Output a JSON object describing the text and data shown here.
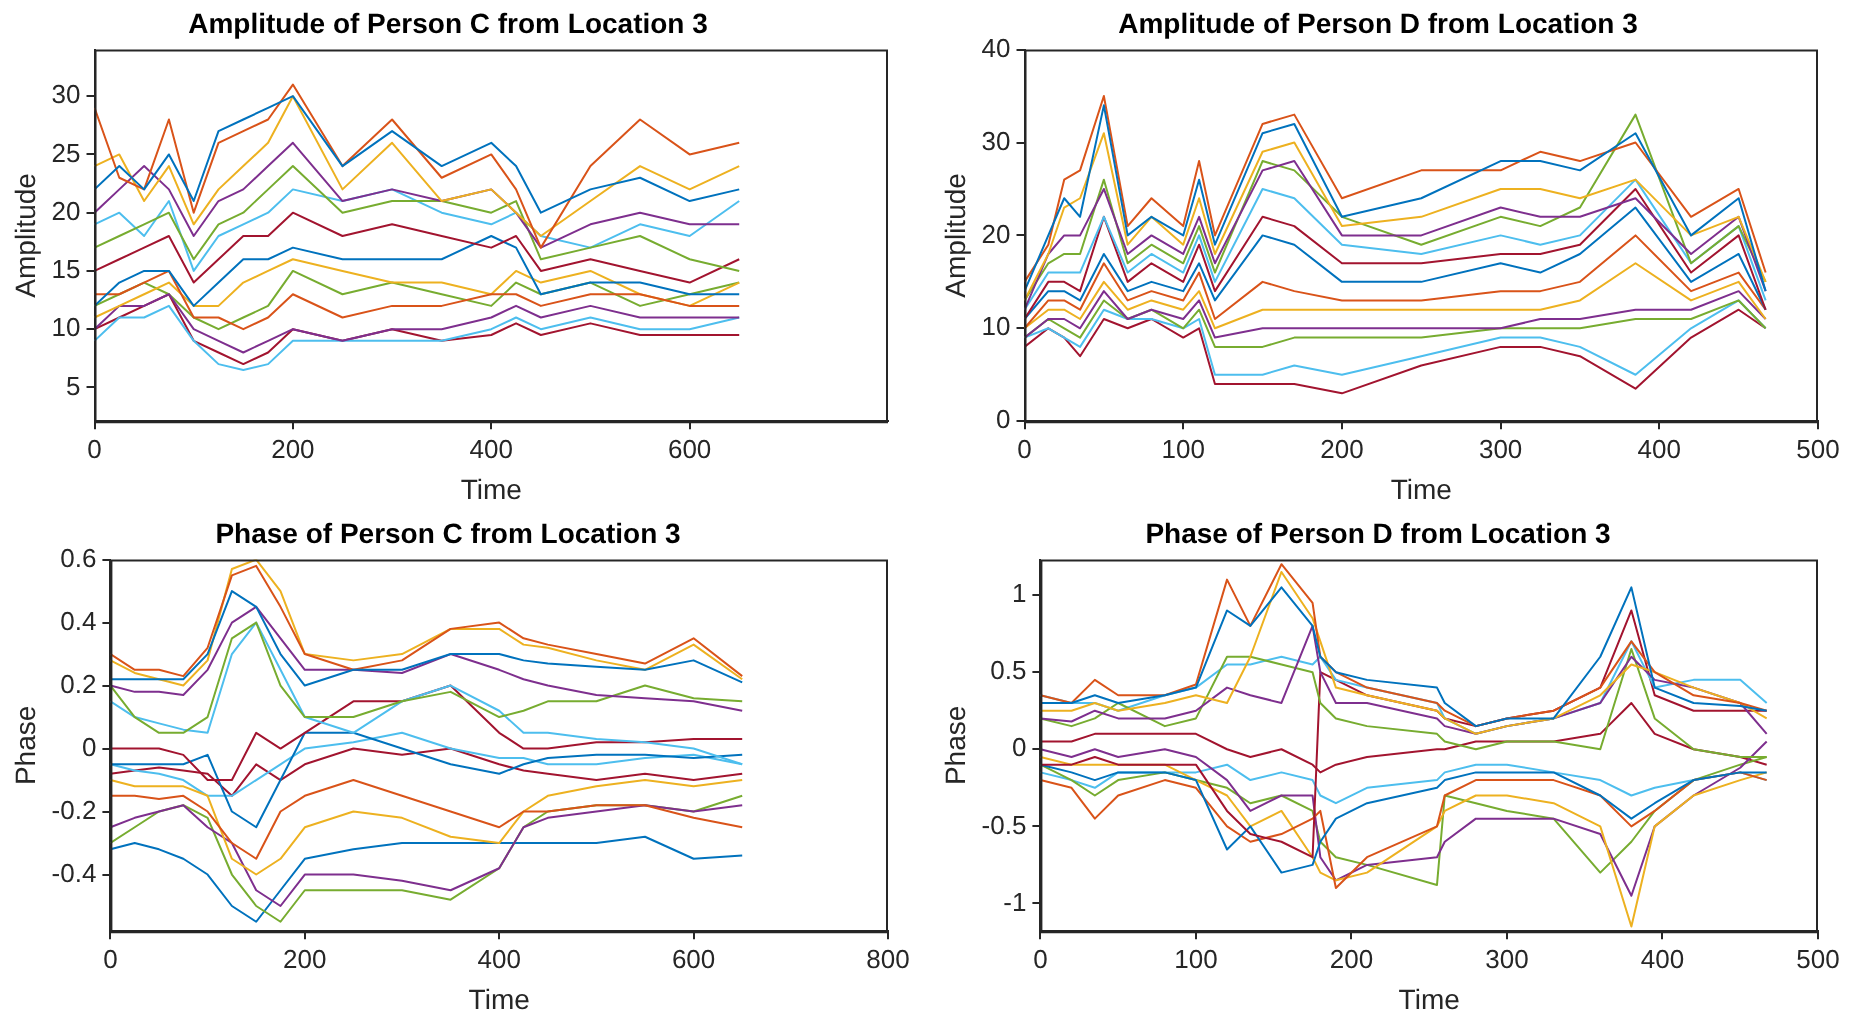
{
  "chart_data": [
    {
      "type": "line",
      "title": "Amplitude of Person C from Location 3",
      "xlabel": "Time",
      "ylabel": "Amplitude",
      "xlim": [
        0,
        800
      ],
      "xticks": [
        0,
        200,
        400,
        600
      ],
      "ylim": [
        2.1,
        34
      ],
      "yticks": [
        5,
        10,
        15,
        20,
        25,
        30
      ],
      "x": [
        0,
        25,
        50,
        75,
        100,
        125,
        150,
        175,
        200,
        250,
        300,
        350,
        400,
        425,
        450,
        500,
        550,
        600,
        650
      ],
      "series": [
        {
          "color": "#0072bd",
          "values": [
            22,
            24,
            22,
            25,
            21,
            27,
            28,
            29,
            30,
            24,
            27,
            24,
            26,
            24,
            20,
            22,
            23,
            21,
            22
          ]
        },
        {
          "color": "#d95319",
          "values": [
            29,
            23,
            22,
            28,
            20,
            26,
            27,
            28,
            31,
            24,
            28,
            23,
            25,
            22,
            17,
            24,
            28,
            25,
            26
          ]
        },
        {
          "color": "#edb120",
          "values": [
            24,
            25,
            21,
            24,
            19,
            22,
            24,
            26,
            30,
            22,
            26,
            21,
            22,
            20,
            18,
            21,
            24,
            22,
            24
          ]
        },
        {
          "color": "#7e2f8e",
          "values": [
            20,
            22,
            24,
            22,
            18,
            21,
            22,
            24,
            26,
            21,
            22,
            21,
            22,
            20,
            17,
            19,
            20,
            19,
            19
          ]
        },
        {
          "color": "#77ac30",
          "values": [
            17,
            18,
            19,
            20,
            16,
            19,
            20,
            22,
            24,
            20,
            21,
            21,
            20,
            21,
            16,
            17,
            18,
            16,
            15
          ]
        },
        {
          "color": "#4dbeee",
          "values": [
            19,
            20,
            18,
            21,
            15,
            18,
            19,
            20,
            22,
            21,
            22,
            20,
            19,
            20,
            18,
            17,
            19,
            18,
            21
          ]
        },
        {
          "color": "#a2142f",
          "values": [
            15,
            16,
            17,
            18,
            14,
            16,
            18,
            18,
            20,
            18,
            19,
            18,
            17,
            18,
            15,
            16,
            15,
            14,
            16
          ]
        },
        {
          "color": "#0072bd",
          "values": [
            12,
            14,
            15,
            15,
            12,
            14,
            16,
            16,
            17,
            16,
            16,
            16,
            18,
            17,
            13,
            14,
            14,
            13,
            13
          ]
        },
        {
          "color": "#d95319",
          "values": [
            13,
            13,
            14,
            15,
            11,
            11,
            10,
            11,
            13,
            11,
            12,
            12,
            13,
            13,
            12,
            13,
            13,
            12,
            12
          ]
        },
        {
          "color": "#edb120",
          "values": [
            11,
            12,
            13,
            14,
            12,
            12,
            14,
            15,
            16,
            15,
            14,
            14,
            13,
            15,
            14,
            15,
            13,
            12,
            14
          ]
        },
        {
          "color": "#7e2f8e",
          "values": [
            10,
            12,
            12,
            13,
            10,
            9,
            8,
            9,
            10,
            9,
            10,
            10,
            11,
            12,
            11,
            12,
            11,
            11,
            11
          ]
        },
        {
          "color": "#77ac30",
          "values": [
            12,
            13,
            14,
            13,
            11,
            10,
            11,
            12,
            15,
            13,
            14,
            13,
            12,
            14,
            13,
            14,
            12,
            13,
            14
          ]
        },
        {
          "color": "#4dbeee",
          "values": [
            9,
            11,
            11,
            12,
            9,
            7,
            6.5,
            7,
            9,
            9,
            9,
            9,
            10,
            11,
            10,
            11,
            10,
            10,
            11
          ]
        },
        {
          "color": "#a2142f",
          "values": [
            10,
            11,
            12,
            13,
            9,
            8,
            7,
            8,
            10,
            9,
            10,
            9,
            9.5,
            10.5,
            9.5,
            10.5,
            9.5,
            9.5,
            9.5
          ]
        }
      ]
    },
    {
      "type": "line",
      "title": "Amplitude of Person D from Location 3",
      "xlabel": "Time",
      "ylabel": "Amplitude",
      "xlim": [
        0,
        500
      ],
      "xticks": [
        0,
        100,
        200,
        300,
        400,
        500
      ],
      "ylim": [
        0,
        40
      ],
      "yticks": [
        0,
        10,
        20,
        30,
        40
      ],
      "x": [
        0,
        15,
        25,
        35,
        50,
        65,
        80,
        100,
        110,
        120,
        150,
        170,
        200,
        250,
        300,
        325,
        350,
        385,
        420,
        450,
        467
      ],
      "series": [
        {
          "color": "#0072bd",
          "values": [
            14,
            20,
            24,
            22,
            34,
            20,
            22,
            20,
            26,
            19,
            31,
            32,
            22,
            24,
            28,
            28,
            27,
            31,
            20,
            24,
            14
          ]
        },
        {
          "color": "#d95319",
          "values": [
            15,
            19,
            26,
            27,
            35,
            21,
            24,
            21,
            28,
            20,
            32,
            33,
            24,
            27,
            27,
            29,
            28,
            30,
            22,
            25,
            16
          ]
        },
        {
          "color": "#edb120",
          "values": [
            13,
            18,
            23,
            24,
            31,
            19,
            22,
            19,
            24,
            18,
            29,
            30,
            21,
            22,
            25,
            25,
            24,
            26,
            20,
            22,
            15
          ]
        },
        {
          "color": "#7e2f8e",
          "values": [
            12,
            18,
            20,
            20,
            25,
            18,
            20,
            18,
            22,
            17,
            27,
            28,
            20,
            20,
            23,
            22,
            22,
            24,
            18,
            22,
            14
          ]
        },
        {
          "color": "#77ac30",
          "values": [
            13,
            17,
            18,
            18,
            26,
            17,
            19,
            17,
            21,
            16,
            28,
            27,
            22,
            19,
            22,
            21,
            23,
            33,
            17,
            21,
            15
          ]
        },
        {
          "color": "#4dbeee",
          "values": [
            12,
            16,
            16,
            16,
            22,
            16,
            18,
            16,
            20,
            15,
            25,
            24,
            19,
            18,
            20,
            19,
            20,
            26,
            17,
            21,
            13
          ]
        },
        {
          "color": "#a2142f",
          "values": [
            11,
            15,
            15,
            14,
            22,
            15,
            17,
            15,
            19,
            14,
            22,
            21,
            17,
            17,
            18,
            18,
            19,
            25,
            16,
            20,
            12
          ]
        },
        {
          "color": "#0072bd",
          "values": [
            11,
            14,
            14,
            13,
            18,
            14,
            15,
            14,
            17,
            13,
            20,
            19,
            15,
            15,
            17,
            16,
            18,
            23,
            15,
            18,
            12
          ]
        },
        {
          "color": "#d95319",
          "values": [
            10,
            13,
            13,
            12,
            17,
            13,
            14,
            13,
            16,
            11,
            15,
            14,
            13,
            13,
            14,
            14,
            15,
            20,
            14,
            16,
            12
          ]
        },
        {
          "color": "#edb120",
          "values": [
            10,
            12,
            12,
            11,
            15,
            12,
            13,
            12,
            14,
            10,
            12,
            12,
            12,
            12,
            12,
            12,
            13,
            17,
            13,
            15,
            11
          ]
        },
        {
          "color": "#7e2f8e",
          "values": [
            9,
            11,
            11,
            10,
            14,
            11,
            12,
            11,
            13,
            9,
            10,
            10,
            10,
            10,
            10,
            11,
            11,
            12,
            12,
            14,
            11
          ]
        },
        {
          "color": "#77ac30",
          "values": [
            9,
            11,
            10,
            9,
            13,
            11,
            12,
            10,
            12,
            8,
            8,
            9,
            9,
            9,
            10,
            10,
            10,
            11,
            11,
            13,
            10
          ]
        },
        {
          "color": "#4dbeee",
          "values": [
            9,
            10,
            9,
            8,
            12,
            11,
            11,
            10,
            11,
            5,
            5,
            6,
            5,
            7,
            9,
            9,
            8,
            5,
            10,
            13,
            10
          ]
        },
        {
          "color": "#a2142f",
          "values": [
            8,
            10,
            9,
            7,
            11,
            10,
            11,
            9,
            10,
            4,
            4,
            4,
            3,
            6,
            8,
            8,
            7,
            3.5,
            9,
            12,
            10
          ]
        }
      ]
    },
    {
      "type": "line",
      "title": "Phase of Person C from Location 3",
      "xlabel": "Time",
      "ylabel": "Phase",
      "xlim": [
        0,
        800
      ],
      "xticks": [
        0,
        200,
        400,
        600,
        800
      ],
      "ylim": [
        -0.58,
        0.6
      ],
      "yticks": [
        -0.4,
        -0.2,
        0,
        0.2,
        0.4,
        0.6
      ],
      "x": [
        0,
        25,
        50,
        75,
        100,
        125,
        150,
        175,
        200,
        250,
        300,
        350,
        400,
        425,
        450,
        500,
        550,
        600,
        650
      ],
      "series": [
        {
          "color": "#0072bd",
          "values": [
            0.22,
            0.22,
            0.22,
            0.22,
            0.3,
            0.5,
            0.45,
            0.3,
            0.2,
            0.25,
            0.25,
            0.3,
            0.3,
            0.28,
            0.27,
            0.26,
            0.25,
            0.28,
            0.21
          ]
        },
        {
          "color": "#d95319",
          "values": [
            0.3,
            0.25,
            0.25,
            0.23,
            0.32,
            0.55,
            0.58,
            0.45,
            0.3,
            0.25,
            0.28,
            0.38,
            0.4,
            0.35,
            0.33,
            0.3,
            0.27,
            0.35,
            0.23
          ]
        },
        {
          "color": "#edb120",
          "values": [
            0.28,
            0.24,
            0.22,
            0.2,
            0.28,
            0.57,
            0.6,
            0.5,
            0.3,
            0.28,
            0.3,
            0.38,
            0.38,
            0.33,
            0.32,
            0.28,
            0.25,
            0.33,
            0.22
          ]
        },
        {
          "color": "#7e2f8e",
          "values": [
            0.2,
            0.18,
            0.18,
            0.17,
            0.25,
            0.4,
            0.45,
            0.35,
            0.25,
            0.25,
            0.24,
            0.3,
            0.25,
            0.22,
            0.2,
            0.17,
            0.16,
            0.15,
            0.12
          ]
        },
        {
          "color": "#77ac30",
          "values": [
            0.2,
            0.1,
            0.05,
            0.05,
            0.1,
            0.35,
            0.4,
            0.2,
            0.1,
            0.1,
            0.15,
            0.18,
            0.1,
            0.12,
            0.15,
            0.15,
            0.2,
            0.16,
            0.15
          ]
        },
        {
          "color": "#4dbeee",
          "values": [
            0.15,
            0.1,
            0.08,
            0.06,
            0.05,
            0.3,
            0.4,
            0.25,
            0.1,
            0.05,
            0.15,
            0.2,
            0.12,
            0.05,
            0.05,
            0.03,
            0.02,
            0,
            -0.05
          ]
        },
        {
          "color": "#a2142f",
          "values": [
            0,
            0,
            0,
            -0.02,
            -0.1,
            -0.1,
            0.05,
            0,
            0.05,
            0.15,
            0.15,
            0.2,
            0.05,
            0,
            0,
            0.02,
            0.02,
            0.03,
            0.03
          ]
        },
        {
          "color": "#0072bd",
          "values": [
            -0.05,
            -0.05,
            -0.05,
            -0.05,
            -0.02,
            -0.2,
            -0.25,
            -0.1,
            0.05,
            0.05,
            0,
            -0.05,
            -0.08,
            -0.05,
            -0.03,
            -0.02,
            -0.02,
            -0.03,
            -0.02
          ]
        },
        {
          "color": "#d95319",
          "values": [
            -0.15,
            -0.15,
            -0.16,
            -0.15,
            -0.2,
            -0.3,
            -0.35,
            -0.2,
            -0.15,
            -0.1,
            -0.15,
            -0.2,
            -0.25,
            -0.2,
            -0.2,
            -0.18,
            -0.18,
            -0.22,
            -0.25
          ]
        },
        {
          "color": "#edb120",
          "values": [
            -0.1,
            -0.12,
            -0.12,
            -0.12,
            -0.15,
            -0.35,
            -0.4,
            -0.35,
            -0.25,
            -0.2,
            -0.22,
            -0.28,
            -0.3,
            -0.2,
            -0.15,
            -0.12,
            -0.1,
            -0.12,
            -0.1
          ]
        },
        {
          "color": "#7e2f8e",
          "values": [
            -0.25,
            -0.22,
            -0.2,
            -0.18,
            -0.25,
            -0.3,
            -0.45,
            -0.5,
            -0.4,
            -0.4,
            -0.42,
            -0.45,
            -0.38,
            -0.25,
            -0.22,
            -0.2,
            -0.18,
            -0.2,
            -0.18
          ]
        },
        {
          "color": "#77ac30",
          "values": [
            -0.3,
            -0.25,
            -0.2,
            -0.18,
            -0.22,
            -0.4,
            -0.5,
            -0.55,
            -0.45,
            -0.45,
            -0.45,
            -0.48,
            -0.38,
            -0.25,
            -0.2,
            -0.18,
            -0.18,
            -0.2,
            -0.15
          ]
        },
        {
          "color": "#4dbeee",
          "values": [
            -0.05,
            -0.07,
            -0.08,
            -0.1,
            -0.15,
            -0.15,
            -0.1,
            -0.05,
            0,
            0.02,
            0.05,
            0,
            -0.03,
            -0.03,
            -0.05,
            -0.05,
            -0.03,
            -0.02,
            -0.05
          ]
        },
        {
          "color": "#a2142f",
          "values": [
            -0.08,
            -0.07,
            -0.06,
            -0.07,
            -0.08,
            -0.15,
            -0.05,
            -0.1,
            -0.05,
            0,
            -0.02,
            0,
            -0.05,
            -0.07,
            -0.08,
            -0.1,
            -0.08,
            -0.1,
            -0.08
          ]
        },
        {
          "color": "#0072bd",
          "values": [
            -0.32,
            -0.3,
            -0.32,
            -0.35,
            -0.4,
            -0.5,
            -0.55,
            -0.45,
            -0.35,
            -0.32,
            -0.3,
            -0.3,
            -0.3,
            -0.3,
            -0.3,
            -0.3,
            -0.28,
            -0.35,
            -0.34
          ]
        }
      ]
    },
    {
      "type": "line",
      "title": "Phase of Person D from Location 3",
      "xlabel": "Time",
      "ylabel": "Phase",
      "xlim": [
        0,
        500
      ],
      "xticks": [
        0,
        100,
        200,
        300,
        400,
        500
      ],
      "ylim": [
        -1.18,
        1.23
      ],
      "yticks": [
        -1,
        -0.5,
        0,
        0.5,
        1
      ],
      "x": [
        0,
        20,
        35,
        50,
        80,
        100,
        120,
        135,
        155,
        175,
        180,
        190,
        210,
        255,
        260,
        280,
        300,
        330,
        360,
        380,
        395,
        420,
        450,
        467
      ],
      "series": [
        {
          "color": "#0072bd",
          "values": [
            0.3,
            0.3,
            0.35,
            0.3,
            0.35,
            0.4,
            0.9,
            0.8,
            1.05,
            0.8,
            0.6,
            0.5,
            0.45,
            0.4,
            0.3,
            0.15,
            0.2,
            0.2,
            0.6,
            1.05,
            0.4,
            0.3,
            0.28,
            0.25
          ]
        },
        {
          "color": "#d95319",
          "values": [
            0.35,
            0.3,
            0.45,
            0.35,
            0.35,
            0.42,
            1.1,
            0.8,
            1.2,
            0.95,
            0.6,
            0.5,
            0.4,
            0.3,
            0.25,
            0.15,
            0.2,
            0.25,
            0.4,
            0.7,
            0.5,
            0.35,
            0.3,
            0.25
          ]
        },
        {
          "color": "#edb120",
          "values": [
            0.25,
            0.25,
            0.3,
            0.25,
            0.3,
            0.35,
            0.3,
            0.6,
            1.15,
            0.85,
            0.7,
            0.4,
            0.35,
            0.25,
            0.2,
            0.1,
            0.15,
            0.2,
            0.35,
            0.55,
            0.5,
            0.4,
            0.3,
            0.2
          ]
        },
        {
          "color": "#7e2f8e",
          "values": [
            0.2,
            0.18,
            0.25,
            0.2,
            0.2,
            0.25,
            0.4,
            0.35,
            0.3,
            0.8,
            0.5,
            0.3,
            0.3,
            0.2,
            0.15,
            0.1,
            0.15,
            0.2,
            0.3,
            0.6,
            0.45,
            0.4,
            0.3,
            0.1
          ]
        },
        {
          "color": "#77ac30",
          "values": [
            0.2,
            0.15,
            0.2,
            0.3,
            0.15,
            0.2,
            0.6,
            0.6,
            0.55,
            0.5,
            0.3,
            0.2,
            0.15,
            0.1,
            0.05,
            0,
            0.05,
            0.05,
            0,
            0.65,
            0.2,
            0,
            -0.05,
            -0.05
          ]
        },
        {
          "color": "#4dbeee",
          "values": [
            0.35,
            0.3,
            0.3,
            0.25,
            0.35,
            0.4,
            0.55,
            0.55,
            0.6,
            0.55,
            0.6,
            0.45,
            0.4,
            0.3,
            0.2,
            0.1,
            0.15,
            0.2,
            0.3,
            0.7,
            0.4,
            0.45,
            0.45,
            0.3
          ]
        },
        {
          "color": "#a2142f",
          "values": [
            -0.1,
            -0.1,
            -0.05,
            -0.1,
            -0.1,
            -0.1,
            -0.4,
            -0.55,
            -0.6,
            -0.7,
            0.5,
            0.45,
            0.35,
            0.25,
            0.2,
            0.15,
            0.2,
            0.25,
            0.4,
            0.9,
            0.35,
            0.25,
            0.25,
            0.25
          ]
        },
        {
          "color": "#0072bd",
          "values": [
            -0.1,
            -0.15,
            -0.2,
            -0.15,
            -0.15,
            -0.2,
            -0.65,
            -0.5,
            -0.8,
            -0.75,
            -0.6,
            -0.45,
            -0.35,
            -0.25,
            -0.2,
            -0.15,
            -0.15,
            -0.15,
            -0.3,
            -0.45,
            -0.35,
            -0.2,
            -0.15,
            -0.15
          ]
        },
        {
          "color": "#d95319",
          "values": [
            -0.2,
            -0.25,
            -0.45,
            -0.3,
            -0.2,
            -0.25,
            -0.5,
            -0.6,
            -0.55,
            -0.45,
            -0.4,
            -0.9,
            -0.7,
            -0.5,
            -0.3,
            -0.2,
            -0.2,
            -0.2,
            -0.3,
            -0.5,
            -0.4,
            -0.2,
            -0.15,
            -0.2
          ]
        },
        {
          "color": "#edb120",
          "values": [
            -0.05,
            -0.1,
            -0.1,
            -0.1,
            -0.1,
            -0.2,
            -0.3,
            -0.5,
            -0.4,
            -0.7,
            -0.8,
            -0.85,
            -0.8,
            -0.5,
            -0.4,
            -0.3,
            -0.3,
            -0.35,
            -0.5,
            -1.15,
            -0.5,
            -0.3,
            -0.2,
            -0.15
          ]
        },
        {
          "color": "#7e2f8e",
          "values": [
            0,
            -0.05,
            0,
            -0.05,
            0,
            -0.05,
            -0.2,
            -0.4,
            -0.3,
            -0.3,
            -0.7,
            -0.85,
            -0.75,
            -0.7,
            -0.6,
            -0.45,
            -0.45,
            -0.45,
            -0.55,
            -0.95,
            -0.5,
            -0.3,
            -0.12,
            0.05
          ]
        },
        {
          "color": "#77ac30",
          "values": [
            -0.1,
            -0.2,
            -0.3,
            -0.2,
            -0.15,
            -0.2,
            -0.25,
            -0.35,
            -0.3,
            -0.4,
            -0.6,
            -0.7,
            -0.75,
            -0.88,
            -0.3,
            -0.35,
            -0.4,
            -0.45,
            -0.8,
            -0.6,
            -0.4,
            -0.2,
            -0.1,
            -0.05
          ]
        },
        {
          "color": "#4dbeee",
          "values": [
            -0.15,
            -0.2,
            -0.25,
            -0.15,
            -0.15,
            -0.15,
            -0.1,
            -0.2,
            -0.15,
            -0.2,
            -0.3,
            -0.35,
            -0.25,
            -0.2,
            -0.15,
            -0.1,
            -0.1,
            -0.15,
            -0.2,
            -0.3,
            -0.25,
            -0.2,
            -0.15,
            -0.2
          ]
        },
        {
          "color": "#a2142f",
          "values": [
            0.05,
            0.05,
            0.1,
            0.1,
            0.1,
            0.1,
            0,
            -0.05,
            0,
            -0.1,
            -0.15,
            -0.1,
            -0.05,
            0,
            0,
            0.05,
            0.05,
            0.05,
            0.1,
            0.3,
            0.1,
            0,
            -0.05,
            -0.1
          ]
        }
      ]
    }
  ]
}
